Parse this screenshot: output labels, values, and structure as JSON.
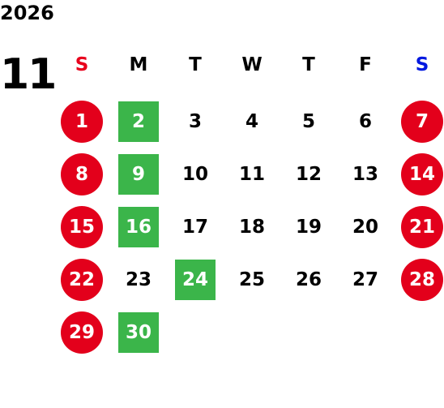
{
  "year": "2026",
  "month": "11",
  "weekdays": [
    {
      "label": "S",
      "color": "#e8001c"
    },
    {
      "label": "M",
      "color": "#000000"
    },
    {
      "label": "T",
      "color": "#000000"
    },
    {
      "label": "W",
      "color": "#000000"
    },
    {
      "label": "T",
      "color": "#000000"
    },
    {
      "label": "F",
      "color": "#000000"
    },
    {
      "label": "S",
      "color": "#0018e0"
    }
  ],
  "weeks": [
    [
      {
        "day": 1,
        "style": "red-circle"
      },
      {
        "day": 2,
        "style": "green-square"
      },
      {
        "day": 3,
        "style": "plain"
      },
      {
        "day": 4,
        "style": "plain"
      },
      {
        "day": 5,
        "style": "plain"
      },
      {
        "day": 6,
        "style": "plain"
      },
      {
        "day": 7,
        "style": "red-circle"
      }
    ],
    [
      {
        "day": 8,
        "style": "red-circle"
      },
      {
        "day": 9,
        "style": "green-square"
      },
      {
        "day": 10,
        "style": "plain"
      },
      {
        "day": 11,
        "style": "plain"
      },
      {
        "day": 12,
        "style": "plain"
      },
      {
        "day": 13,
        "style": "plain"
      },
      {
        "day": 14,
        "style": "red-circle"
      }
    ],
    [
      {
        "day": 15,
        "style": "red-circle"
      },
      {
        "day": 16,
        "style": "green-square"
      },
      {
        "day": 17,
        "style": "plain"
      },
      {
        "day": 18,
        "style": "plain"
      },
      {
        "day": 19,
        "style": "plain"
      },
      {
        "day": 20,
        "style": "plain"
      },
      {
        "day": 21,
        "style": "red-circle"
      }
    ],
    [
      {
        "day": 22,
        "style": "red-circle"
      },
      {
        "day": 23,
        "style": "plain"
      },
      {
        "day": 24,
        "style": "green-square"
      },
      {
        "day": 25,
        "style": "plain"
      },
      {
        "day": 26,
        "style": "plain"
      },
      {
        "day": 27,
        "style": "plain"
      },
      {
        "day": 28,
        "style": "red-circle"
      }
    ],
    [
      {
        "day": 29,
        "style": "red-circle"
      },
      {
        "day": 30,
        "style": "green-square"
      }
    ]
  ]
}
